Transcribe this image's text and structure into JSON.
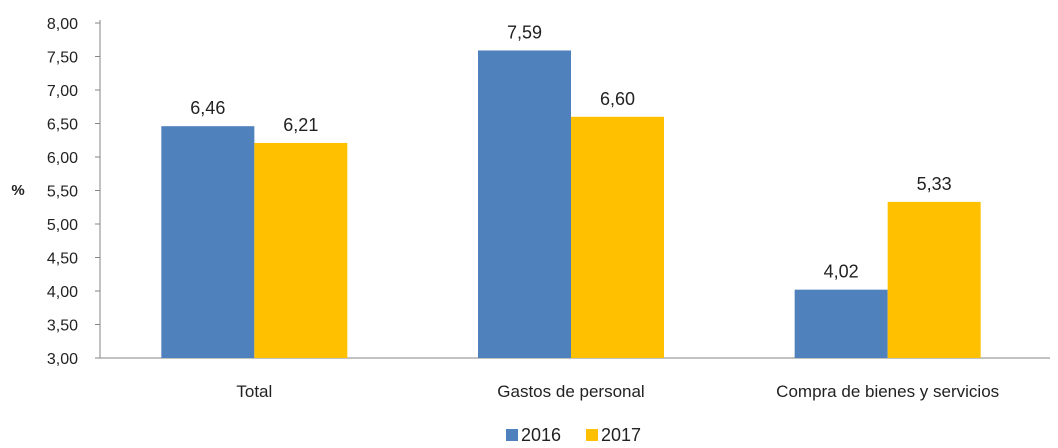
{
  "chart_data": {
    "type": "bar",
    "ylabel": "%",
    "ylim": [
      3.0,
      8.0
    ],
    "yticks": [
      "3,00",
      "3,50",
      "4,00",
      "4,50",
      "5,00",
      "5,50",
      "6,00",
      "6,50",
      "7,00",
      "7,50",
      "8,00"
    ],
    "categories": [
      "Total",
      "Gastos de personal",
      "Compra de bienes y servicios"
    ],
    "series": [
      {
        "name": "2016",
        "color": "#4F81BD",
        "values": [
          6.46,
          7.59,
          4.02
        ],
        "labels": [
          "6,46",
          "7,59",
          "4,02"
        ]
      },
      {
        "name": "2017",
        "color": "#FFC000",
        "values": [
          6.21,
          6.6,
          5.33
        ],
        "labels": [
          "6,21",
          "6,60",
          "5,33"
        ]
      }
    ],
    "legend_position": "bottom",
    "grid": false
  }
}
